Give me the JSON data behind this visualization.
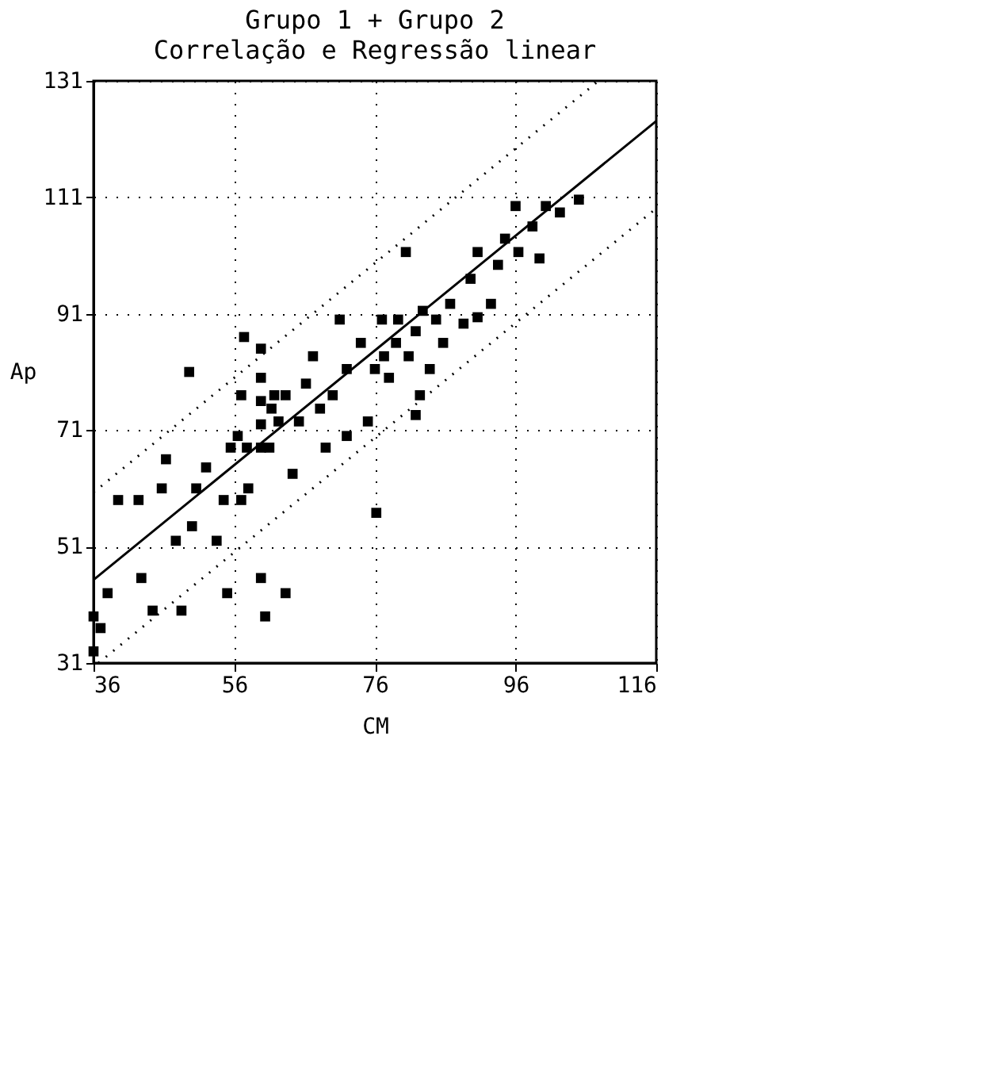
{
  "chart_data": {
    "type": "scatter",
    "title": "Grupo 1 + Grupo 2",
    "subtitle": "Correlação e Regressão linear",
    "xlabel": "CM",
    "ylabel": "Ap",
    "xlim": [
      36,
      116
    ],
    "xticks": [
      36,
      56,
      76,
      96,
      116
    ],
    "ylim": [
      31,
      131
    ],
    "yticks": [
      31,
      51,
      71,
      91,
      111,
      131
    ],
    "grid": true,
    "series": [
      {
        "color": "#000000",
        "marker": "square",
        "x": [
          36,
          36,
          37,
          38,
          39.5,
          42.4,
          42.8,
          44.4,
          45.7,
          46.3,
          47.7,
          48.5,
          50,
          49.6,
          50.6,
          52,
          53.5,
          54.5,
          55,
          55.5,
          56.5,
          57,
          57.4,
          57.8,
          58,
          59.8,
          59.8,
          59.8,
          59.8,
          59.8,
          59.8,
          61,
          61.3,
          61.7,
          62.3,
          63.3,
          64.3,
          65.2,
          66.2,
          67.2,
          68.2,
          69,
          70,
          71,
          72,
          72,
          74,
          75,
          76,
          77,
          77.3,
          78,
          79,
          79.3,
          80.4,
          80.8,
          81.8,
          82.4,
          82.8,
          83.8,
          84.7,
          85.7,
          86.7,
          88.6,
          89.6,
          90.6,
          90.6,
          92.5,
          93.5,
          94.5,
          96,
          96.4,
          98.4,
          99.4,
          100.3,
          102.3,
          105,
          57,
          63.3,
          60.4,
          76.2,
          81.8
        ],
        "values": [
          33,
          39,
          37,
          43,
          59,
          59,
          45.6,
          40,
          61,
          66,
          52,
          40,
          54.5,
          81,
          61,
          64.6,
          52,
          59,
          43,
          68,
          70,
          77,
          87,
          68,
          61,
          68,
          72,
          76,
          80,
          85,
          45.6,
          68,
          74.7,
          77,
          72.5,
          77,
          63.5,
          72.5,
          79,
          83.7,
          74.7,
          68,
          77,
          90,
          81.5,
          70,
          86,
          72.5,
          81.5,
          90,
          83.7,
          80,
          86,
          90,
          101.6,
          83.7,
          88,
          77,
          91.5,
          81.5,
          90,
          86,
          92.7,
          89.3,
          97,
          101.6,
          90.4,
          92.7,
          99.4,
          103.9,
          109.5,
          101.6,
          106,
          100.5,
          109.5,
          108.4,
          110.6,
          59,
          43,
          39,
          56.8,
          73.6
        ]
      },
      {
        "type": "line",
        "color": "#000000",
        "line_style": "solid",
        "x": [
          36,
          116
        ],
        "values": [
          45.3,
          124.1
        ]
      },
      {
        "type": "line",
        "color": "#000000",
        "line_style": "dotted",
        "x": [
          36,
          107.8
        ],
        "values": [
          60.3,
          131
        ]
      },
      {
        "type": "line",
        "color": "#000000",
        "line_style": "dotted",
        "x": [
          36.7,
          116
        ],
        "values": [
          31,
          109.1
        ]
      }
    ]
  }
}
